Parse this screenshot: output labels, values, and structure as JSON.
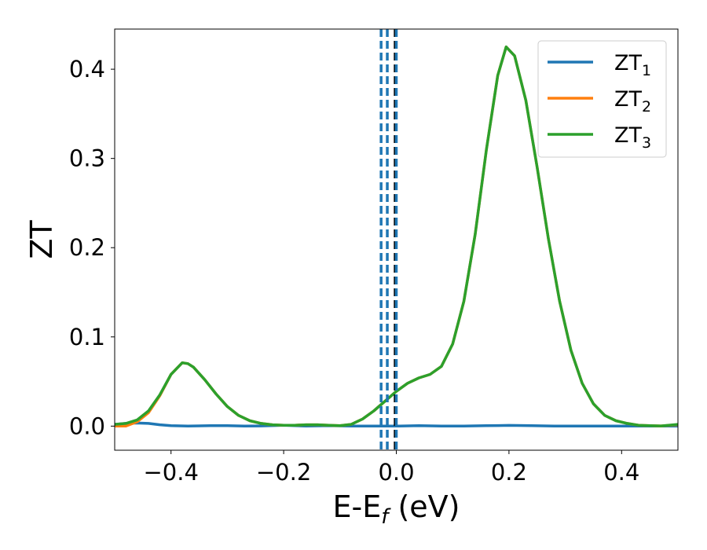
{
  "chart_data": {
    "type": "line",
    "xlabel_main": "E-E",
    "xlabel_sub": "f",
    "xlabel_unit": " (eV)",
    "ylabel": "ZT",
    "xlim": [
      -0.5,
      0.5
    ],
    "ylim": [
      -0.027,
      0.445
    ],
    "xticks": [
      {
        "value": -0.4,
        "label": "−0.4"
      },
      {
        "value": -0.2,
        "label": "−0.2"
      },
      {
        "value": 0.0,
        "label": "0.0"
      },
      {
        "value": 0.2,
        "label": "0.2"
      },
      {
        "value": 0.4,
        "label": "0.4"
      }
    ],
    "yticks": [
      {
        "value": 0.0,
        "label": "0.0"
      },
      {
        "value": 0.1,
        "label": "0.1"
      },
      {
        "value": 0.2,
        "label": "0.2"
      },
      {
        "value": 0.3,
        "label": "0.3"
      },
      {
        "value": 0.4,
        "label": "0.4"
      }
    ],
    "vlines": [
      {
        "x": -0.027,
        "color": "#1f77b4",
        "style": "dashed"
      },
      {
        "x": -0.016,
        "color": "#1f77b4",
        "style": "dashed"
      },
      {
        "x": -0.002,
        "color": "#000000",
        "style": "dashed"
      },
      {
        "x": 0.0,
        "color": "#1f77b4",
        "style": "dashed"
      }
    ],
    "legend": {
      "position": "top-right"
    },
    "series": [
      {
        "name": "ZT",
        "sub": "1",
        "color": "#1f77b4",
        "points": [
          [
            -0.5,
            0.002
          ],
          [
            -0.48,
            0.003
          ],
          [
            -0.46,
            0.0035
          ],
          [
            -0.44,
            0.003
          ],
          [
            -0.42,
            0.0015
          ],
          [
            -0.4,
            0.0005
          ],
          [
            -0.37,
            0.0
          ],
          [
            -0.33,
            0.0005
          ],
          [
            -0.3,
            0.0005
          ],
          [
            -0.27,
            0.0
          ],
          [
            -0.24,
            0.0002
          ],
          [
            -0.2,
            0.001
          ],
          [
            -0.16,
            0.0
          ],
          [
            -0.12,
            0.0005
          ],
          [
            -0.08,
            0.0
          ],
          [
            -0.04,
            0.0
          ],
          [
            0.0,
            0.0
          ],
          [
            0.04,
            0.0005
          ],
          [
            0.08,
            0.0
          ],
          [
            0.12,
            0.0
          ],
          [
            0.16,
            0.0005
          ],
          [
            0.2,
            0.0008
          ],
          [
            0.24,
            0.0005
          ],
          [
            0.28,
            0.0
          ],
          [
            0.32,
            0.0
          ],
          [
            0.36,
            0.0
          ],
          [
            0.4,
            0.0
          ],
          [
            0.44,
            0.0
          ],
          [
            0.48,
            0.0
          ],
          [
            0.5,
            0.0
          ]
        ]
      },
      {
        "name": "ZT",
        "sub": "2",
        "color": "#ff7f0e",
        "points": [
          [
            -0.5,
            0.0
          ],
          [
            -0.48,
            0.0
          ],
          [
            -0.46,
            0.005
          ],
          [
            -0.44,
            0.015
          ],
          [
            -0.42,
            0.034
          ],
          [
            -0.4,
            0.058
          ],
          [
            -0.38,
            0.071
          ],
          [
            -0.37,
            0.07
          ],
          [
            -0.36,
            0.066
          ],
          [
            -0.34,
            0.052
          ],
          [
            -0.32,
            0.036
          ],
          [
            -0.3,
            0.022
          ],
          [
            -0.28,
            0.012
          ],
          [
            -0.26,
            0.006
          ],
          [
            -0.24,
            0.003
          ],
          [
            -0.22,
            0.0015
          ],
          [
            -0.2,
            0.001
          ],
          [
            -0.18,
            0.001
          ],
          [
            -0.16,
            0.0015
          ],
          [
            -0.14,
            0.0015
          ],
          [
            -0.12,
            0.001
          ],
          [
            -0.1,
            0.0005
          ],
          [
            -0.08,
            0.002
          ],
          [
            -0.06,
            0.008
          ],
          [
            -0.04,
            0.017
          ],
          [
            -0.02,
            0.028
          ],
          [
            0.0,
            0.039
          ],
          [
            0.02,
            0.048
          ],
          [
            0.04,
            0.054
          ],
          [
            0.06,
            0.058
          ],
          [
            0.08,
            0.067
          ],
          [
            0.1,
            0.092
          ],
          [
            0.12,
            0.14
          ],
          [
            0.14,
            0.215
          ],
          [
            0.16,
            0.31
          ],
          [
            0.18,
            0.393
          ],
          [
            0.195,
            0.425
          ],
          [
            0.21,
            0.415
          ],
          [
            0.23,
            0.365
          ],
          [
            0.25,
            0.29
          ],
          [
            0.27,
            0.21
          ],
          [
            0.29,
            0.14
          ],
          [
            0.31,
            0.085
          ],
          [
            0.33,
            0.048
          ],
          [
            0.35,
            0.025
          ],
          [
            0.37,
            0.012
          ],
          [
            0.39,
            0.006
          ],
          [
            0.41,
            0.003
          ],
          [
            0.43,
            0.001
          ],
          [
            0.45,
            0.0005
          ],
          [
            0.47,
            0.0002
          ],
          [
            0.5,
            0.0015
          ]
        ]
      },
      {
        "name": "ZT",
        "sub": "3",
        "color": "#2ca02c",
        "points": [
          [
            -0.5,
            0.002
          ],
          [
            -0.48,
            0.003
          ],
          [
            -0.46,
            0.007
          ],
          [
            -0.44,
            0.017
          ],
          [
            -0.42,
            0.035
          ],
          [
            -0.4,
            0.058
          ],
          [
            -0.38,
            0.071
          ],
          [
            -0.37,
            0.07
          ],
          [
            -0.36,
            0.066
          ],
          [
            -0.34,
            0.052
          ],
          [
            -0.32,
            0.036
          ],
          [
            -0.3,
            0.022
          ],
          [
            -0.28,
            0.012
          ],
          [
            -0.26,
            0.006
          ],
          [
            -0.24,
            0.003
          ],
          [
            -0.22,
            0.0015
          ],
          [
            -0.2,
            0.001
          ],
          [
            -0.18,
            0.001
          ],
          [
            -0.16,
            0.0015
          ],
          [
            -0.14,
            0.0015
          ],
          [
            -0.12,
            0.001
          ],
          [
            -0.1,
            0.0005
          ],
          [
            -0.08,
            0.002
          ],
          [
            -0.06,
            0.008
          ],
          [
            -0.04,
            0.017
          ],
          [
            -0.02,
            0.028
          ],
          [
            0.0,
            0.039
          ],
          [
            0.02,
            0.048
          ],
          [
            0.04,
            0.054
          ],
          [
            0.06,
            0.058
          ],
          [
            0.08,
            0.067
          ],
          [
            0.1,
            0.092
          ],
          [
            0.12,
            0.14
          ],
          [
            0.14,
            0.215
          ],
          [
            0.16,
            0.31
          ],
          [
            0.18,
            0.393
          ],
          [
            0.195,
            0.425
          ],
          [
            0.21,
            0.415
          ],
          [
            0.23,
            0.365
          ],
          [
            0.25,
            0.29
          ],
          [
            0.27,
            0.21
          ],
          [
            0.29,
            0.14
          ],
          [
            0.31,
            0.085
          ],
          [
            0.33,
            0.048
          ],
          [
            0.35,
            0.025
          ],
          [
            0.37,
            0.012
          ],
          [
            0.39,
            0.006
          ],
          [
            0.41,
            0.003
          ],
          [
            0.43,
            0.001
          ],
          [
            0.45,
            0.0005
          ],
          [
            0.47,
            0.0002
          ],
          [
            0.5,
            0.002
          ]
        ]
      }
    ]
  }
}
